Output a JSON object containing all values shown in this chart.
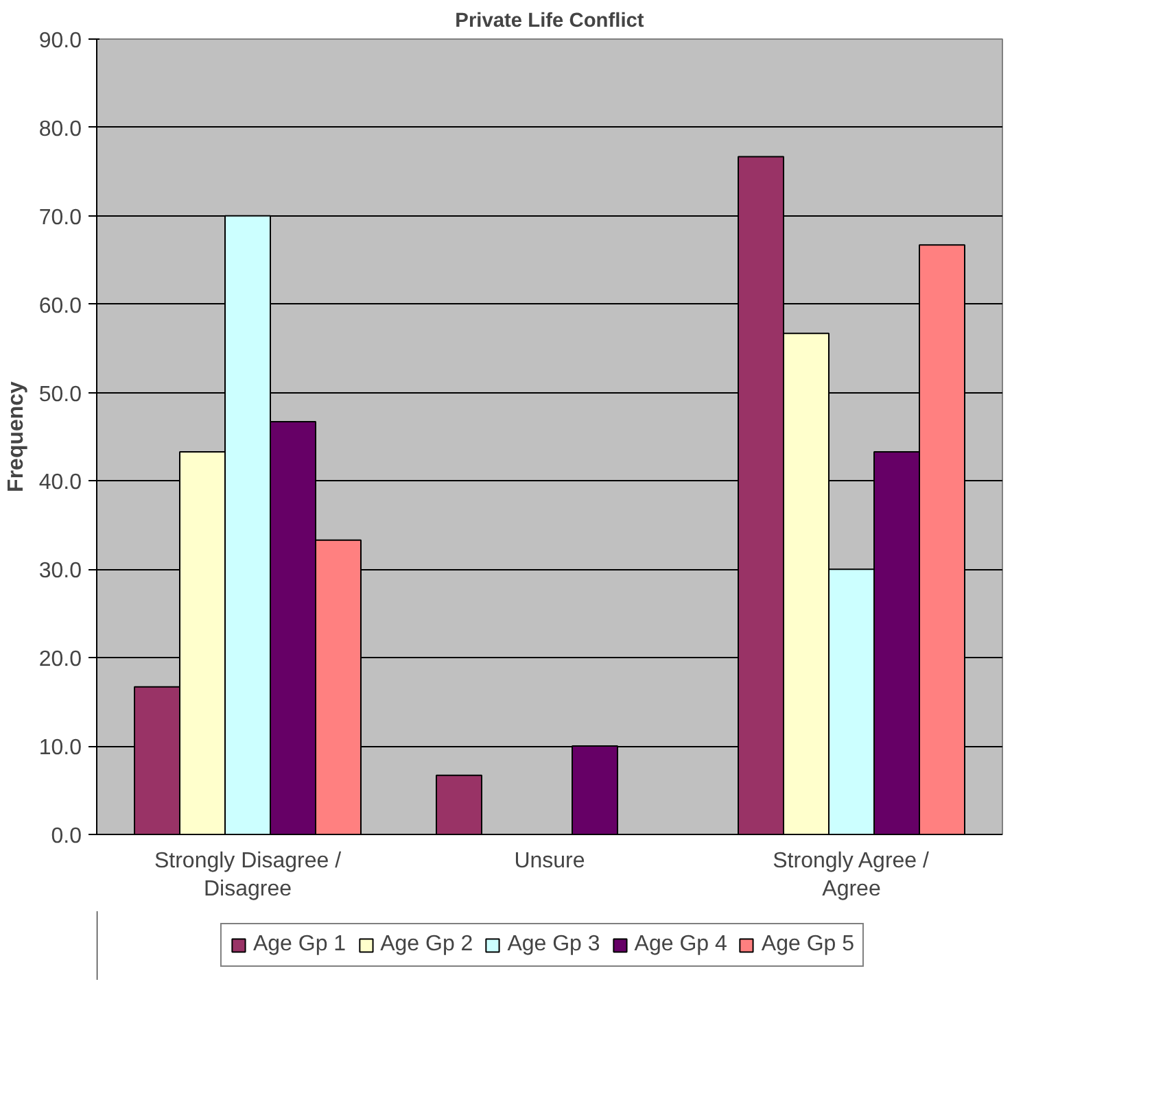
{
  "chart_data": {
    "type": "bar",
    "title": "Private Life Conflict",
    "ylabel": "Frequency",
    "categories": [
      "Strongly Disagree / Disagree",
      "Unsure",
      "Strongly Agree / Agree"
    ],
    "series": [
      {
        "name": "Age Gp 1",
        "color": "#993366",
        "values": [
          16.7,
          6.7,
          76.7
        ]
      },
      {
        "name": "Age Gp 2",
        "color": "#ffffcc",
        "values": [
          43.3,
          null,
          56.7
        ]
      },
      {
        "name": "Age Gp 3",
        "color": "#ccffff",
        "values": [
          70.0,
          null,
          30.0
        ]
      },
      {
        "name": "Age Gp 4",
        "color": "#660066",
        "values": [
          46.7,
          10.0,
          43.3
        ]
      },
      {
        "name": "Age Gp 5",
        "color": "#ff8080",
        "values": [
          33.3,
          null,
          66.7
        ]
      }
    ],
    "ylim": [
      0,
      90
    ],
    "yticks": [
      {
        "value": 0,
        "label": "0.0"
      },
      {
        "value": 10,
        "label": "10.0"
      },
      {
        "value": 20,
        "label": "20.0"
      },
      {
        "value": 30,
        "label": "30.0"
      },
      {
        "value": 40,
        "label": "40.0"
      },
      {
        "value": 50,
        "label": "50.0"
      },
      {
        "value": 60,
        "label": "60.0"
      },
      {
        "value": 70,
        "label": "70.0"
      },
      {
        "value": 80,
        "label": "80.0"
      },
      {
        "value": 90,
        "label": "90.0"
      }
    ],
    "grid": "y",
    "legend": "bottom"
  }
}
